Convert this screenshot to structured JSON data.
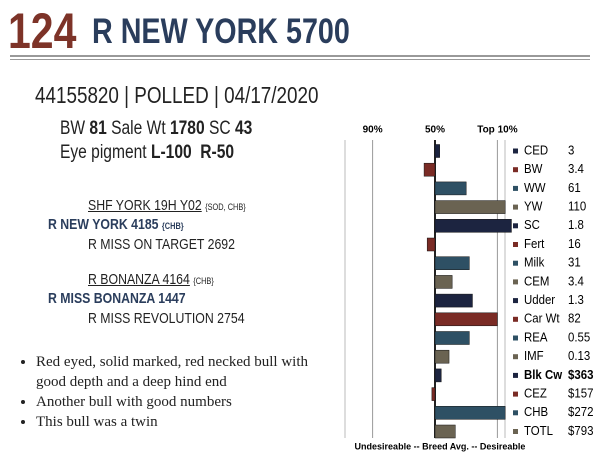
{
  "header": {
    "lot": "124",
    "name": "R NEW YORK 5700"
  },
  "id_line": "44155820 | POLLED | 04/17/2020",
  "stats": {
    "bw_label": "BW",
    "bw": "81",
    "sale_wt_label": "Sale Wt",
    "sale_wt": "1780",
    "sc_label": "SC",
    "sc": "43",
    "eye_label": "Eye pigment",
    "eye": "L-100  R-50"
  },
  "pedigree": [
    {
      "name": "SHF YORK 19H Y02",
      "tag": "{SOD, CHB}"
    },
    {
      "name": "R NEW YORK 4185",
      "tag": "{CHB}"
    },
    {
      "name": "R MISS ON TARGET 2692"
    },
    {
      "name": "R BONANZA 4164",
      "tag": "{CHB}"
    },
    {
      "name": "R MISS BONANZA 1447"
    },
    {
      "name": "R MISS REVOLUTION 2754"
    }
  ],
  "bullets": [
    "Red eyed, solid marked, red necked bull with good depth and a deep hind end",
    "Another bull with good numbers",
    "This bull was a twin"
  ],
  "chart_data": {
    "type": "bar",
    "orientation": "horizontal",
    "x_label": "Undesireable -- Breed Avg. -- Desireable",
    "categories": [
      "CED",
      "BW",
      "WW",
      "YW",
      "SC",
      "Fert",
      "Milk",
      "CEM",
      "Udder",
      "Car Wt",
      "REA",
      "IMF",
      "Blk Cw",
      "CEZ",
      "CHB",
      "TOTL"
    ],
    "epds": [
      "3",
      "3.4",
      "61",
      "110",
      "1.8",
      "16",
      "31",
      "3.4",
      "1.3",
      "82",
      "0.55",
      "0.13",
      "$363",
      "$157",
      "$272",
      "$793"
    ],
    "values": [
      47,
      57,
      30,
      5,
      1,
      55,
      28,
      39,
      26,
      10,
      28,
      41,
      46,
      52,
      5,
      37
    ],
    "colors": [
      "#1c2440",
      "#7a2b25",
      "#2e5064",
      "#6a6352",
      "#1c2440",
      "#7a2b25",
      "#2e5064",
      "#6a6352",
      "#1c2440",
      "#7a2b25",
      "#2e5064",
      "#6a6352",
      "#1c2440",
      "#7a2b25",
      "#2e5064",
      "#6a6352"
    ],
    "xlim": [
      100,
      0
    ],
    "xticks": [
      {
        "value": 90,
        "label": "90%"
      },
      {
        "value": 50,
        "label": "50%"
      },
      {
        "value": 10,
        "label": "Top 10%"
      }
    ]
  }
}
